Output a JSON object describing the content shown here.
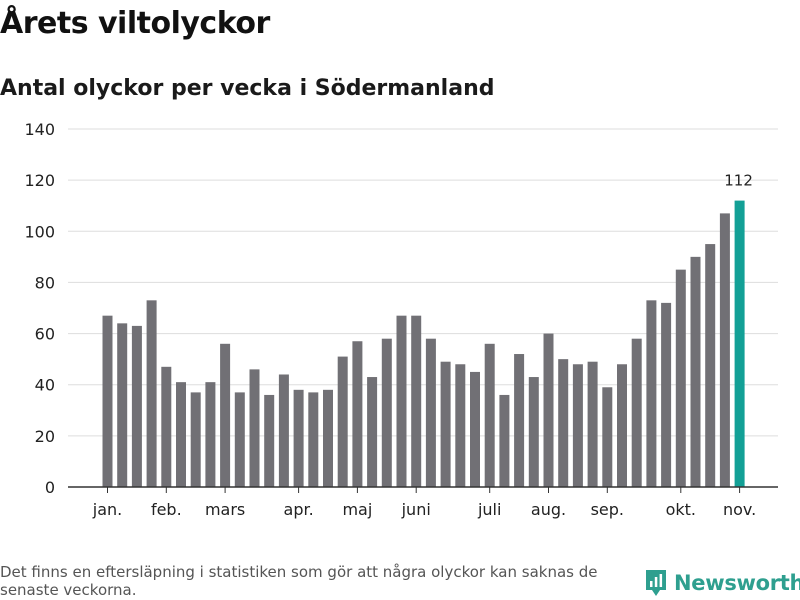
{
  "title": "Årets viltolyckor",
  "subtitle": "Antal olyckor per vecka i Södermanland",
  "footnote": "Det finns en eftersläpning i statistiken som gör att några olyckor kan saknas de senaste veckorna.",
  "brand": "Newsworthy",
  "colors": {
    "bar": "#717075",
    "highlight": "#13a096",
    "grid": "#dddddd"
  },
  "chart_data": {
    "type": "bar",
    "title": "Årets viltolyckor",
    "subtitle": "Antal olyckor per vecka i Södermanland",
    "xlabel": "",
    "ylabel": "",
    "ylim": [
      0,
      140
    ],
    "yticks": [
      0,
      20,
      40,
      60,
      80,
      100,
      120,
      140
    ],
    "values": [
      67,
      64,
      63,
      73,
      47,
      41,
      37,
      41,
      56,
      37,
      46,
      36,
      44,
      38,
      37,
      38,
      51,
      57,
      43,
      58,
      67,
      67,
      58,
      49,
      48,
      45,
      56,
      36,
      52,
      43,
      60,
      50,
      48,
      49,
      39,
      48,
      58,
      73,
      72,
      85,
      90,
      95,
      107,
      112
    ],
    "month_labels": [
      {
        "label": "jan.",
        "bar_index": 0.5
      },
      {
        "label": "feb.",
        "bar_index": 4.5
      },
      {
        "label": "mars",
        "bar_index": 8.5
      },
      {
        "label": "apr.",
        "bar_index": 13.5
      },
      {
        "label": "maj",
        "bar_index": 17.5
      },
      {
        "label": "juni",
        "bar_index": 21.5
      },
      {
        "label": "juli",
        "bar_index": 26.5
      },
      {
        "label": "aug.",
        "bar_index": 30.5
      },
      {
        "label": "sep.",
        "bar_index": 34.5
      },
      {
        "label": "okt.",
        "bar_index": 39.5
      },
      {
        "label": "nov.",
        "bar_index": 43.5
      }
    ],
    "highlight_index": 43,
    "annotation": "112",
    "grid": true
  }
}
